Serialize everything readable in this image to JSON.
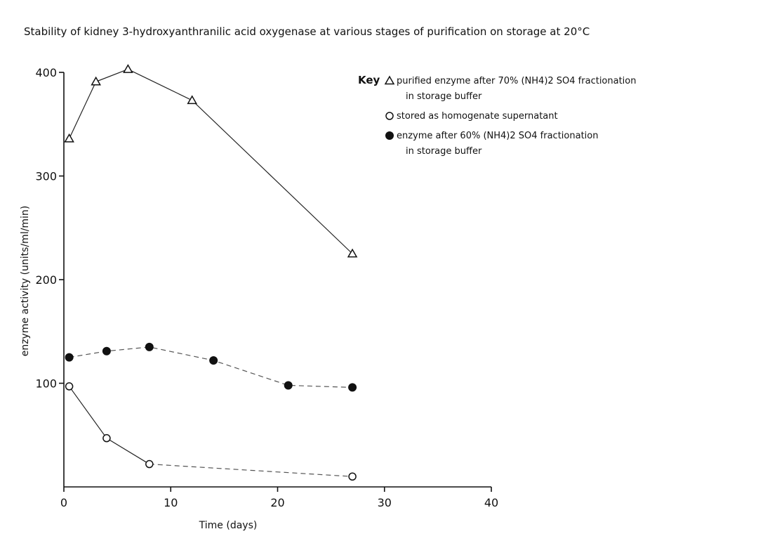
{
  "chart_data": {
    "type": "line",
    "title": "Stability of kidney 3-hydroxyanthranilic acid oxygenase at various stages of purification on storage at 20°C",
    "xlabel": "Time (days)",
    "ylabel": "enzyme activity (units/ml/min)",
    "xlim": [
      0,
      40
    ],
    "ylim": [
      0,
      400
    ],
    "x_ticks": [
      "0",
      "10",
      "20",
      "30",
      "40"
    ],
    "y_ticks": [
      "100",
      "200",
      "300",
      "400"
    ],
    "grid": false,
    "legend_title": "Key",
    "legend_position": "top-right",
    "series": [
      {
        "marker": "triangle",
        "legend_lines": [
          "purified enzyme after 70% (NH4)2 SO4 fractionation",
          "in storage buffer"
        ],
        "x": [
          0.5,
          3,
          6,
          12,
          27
        ],
        "y": [
          336,
          391,
          403,
          373,
          225
        ]
      },
      {
        "marker": "open-circle",
        "legend_lines": [
          "stored as homogenate supernatant"
        ],
        "x": [
          0.5,
          4,
          8,
          27
        ],
        "y": [
          97,
          47,
          22,
          10
        ]
      },
      {
        "marker": "filled-circle",
        "legend_lines": [
          "enzyme after 60% (NH4)2 SO4 fractionation",
          "in storage buffer"
        ],
        "x": [
          0.5,
          4,
          8,
          14,
          21,
          27
        ],
        "y": [
          125,
          131,
          135,
          122,
          98,
          96
        ]
      }
    ]
  }
}
